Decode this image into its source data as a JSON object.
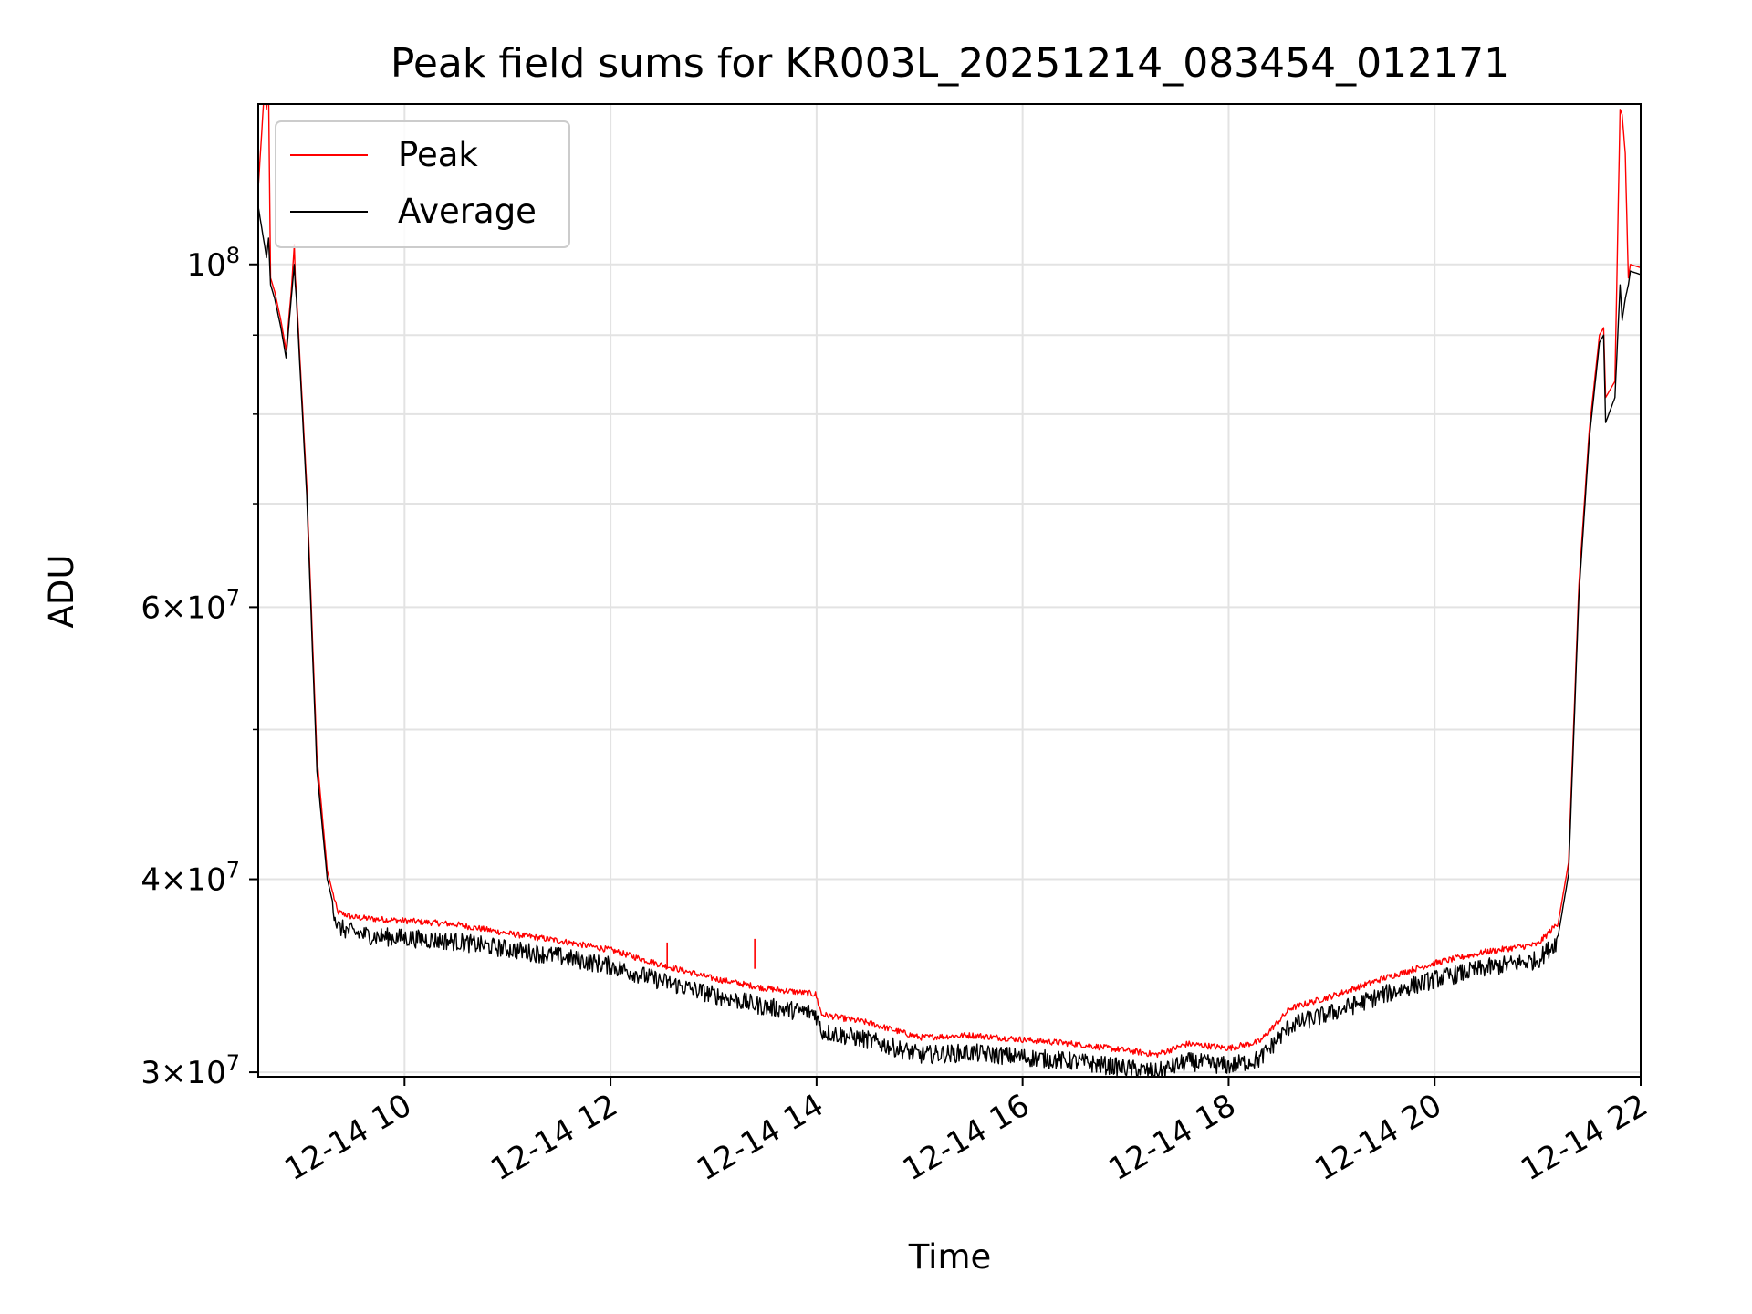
{
  "chart_data": {
    "type": "line",
    "title": "Peak field sums for KR003L_20251214_083454_012171",
    "xlabel": "Time",
    "ylabel": "ADU",
    "yscale": "log",
    "xlim": [
      8.58,
      22.0
    ],
    "ylim": [
      29800000,
      127000000
    ],
    "grid": true,
    "legend_position": "upper-left",
    "x_ticks": [
      {
        "value": 10,
        "label": "12-14 10"
      },
      {
        "value": 12,
        "label": "12-14 12"
      },
      {
        "value": 14,
        "label": "12-14 14"
      },
      {
        "value": 16,
        "label": "12-14 16"
      },
      {
        "value": 18,
        "label": "12-14 18"
      },
      {
        "value": 20,
        "label": "12-14 20"
      },
      {
        "value": 22,
        "label": "12-14 22"
      }
    ],
    "y_ticks": [
      {
        "value": 30000000,
        "mantissa": "3",
        "exponent": "7"
      },
      {
        "value": 40000000,
        "mantissa": "4",
        "exponent": "7"
      },
      {
        "value": 60000000,
        "mantissa": "6",
        "exponent": "7"
      },
      {
        "value": 100000000,
        "mantissa": "",
        "exponent": "8"
      }
    ],
    "y_minor_ticks": [
      50000000,
      70000000,
      80000000,
      90000000
    ],
    "series": [
      {
        "name": "Peak",
        "color": "#ff0000",
        "x": [
          8.58,
          8.64,
          8.66,
          8.68,
          8.7,
          8.72,
          8.74,
          8.8,
          8.85,
          8.9,
          8.93,
          8.94,
          8.95,
          9.05,
          9.15,
          9.25,
          9.35,
          9.5,
          9.7,
          10.0,
          10.5,
          11.0,
          11.5,
          12.0,
          12.5,
          13.0,
          13.5,
          13.99,
          14.05,
          14.5,
          15.0,
          15.5,
          16.0,
          16.5,
          17.0,
          17.3,
          17.6,
          18.0,
          18.3,
          18.6,
          19.0,
          19.5,
          20.0,
          20.5,
          21.0,
          21.2,
          21.3,
          21.4,
          21.5,
          21.6,
          21.64,
          21.66,
          21.75,
          21.8,
          21.82,
          21.85,
          21.88,
          21.9,
          22.0
        ],
        "y": [
          112000000,
          130000000,
          126000000,
          130000000,
          98000000,
          97000000,
          96000000,
          92000000,
          88000000,
          96000000,
          103000000,
          98000000,
          96000000,
          72000000,
          48000000,
          40500000,
          38100000,
          37800000,
          37700000,
          37600000,
          37400000,
          36900000,
          36500000,
          36000000,
          35200000,
          34500000,
          34000000,
          33700000,
          32700000,
          32300000,
          31600000,
          31700000,
          31500000,
          31300000,
          31000000,
          30800000,
          31300000,
          31100000,
          31400000,
          33000000,
          33600000,
          34500000,
          35300000,
          35900000,
          36300000,
          37500000,
          41000000,
          62000000,
          78000000,
          90000000,
          91000000,
          82000000,
          84000000,
          126000000,
          125000000,
          118000000,
          98000000,
          100000000,
          99500000
        ]
      },
      {
        "name": "Average",
        "color": "#000000",
        "x": [
          8.58,
          8.64,
          8.66,
          8.68,
          8.7,
          8.72,
          8.74,
          8.8,
          8.85,
          8.9,
          8.93,
          8.94,
          8.95,
          9.05,
          9.15,
          9.25,
          9.35,
          9.5,
          9.7,
          10.0,
          10.5,
          11.0,
          11.5,
          12.0,
          12.5,
          13.0,
          13.5,
          13.99,
          14.05,
          14.5,
          15.0,
          15.5,
          16.0,
          16.5,
          17.0,
          17.3,
          17.6,
          18.0,
          18.3,
          18.6,
          19.0,
          19.5,
          20.0,
          20.5,
          21.0,
          21.2,
          21.3,
          21.4,
          21.5,
          21.6,
          21.64,
          21.66,
          21.75,
          21.8,
          21.82,
          21.85,
          21.88,
          21.9,
          22.0
        ],
        "y": [
          109000000,
          103000000,
          101000000,
          104000000,
          97000000,
          96000000,
          95000000,
          91000000,
          87000000,
          95000000,
          100000000,
          97000000,
          95000000,
          71000000,
          47000000,
          40000000,
          37500000,
          37200000,
          37000000,
          36900000,
          36700000,
          36300000,
          35900000,
          35400000,
          34600000,
          33900000,
          33300000,
          33000000,
          32100000,
          31700000,
          31000000,
          31100000,
          30900000,
          30700000,
          30400000,
          30200000,
          30700000,
          30500000,
          30800000,
          32400000,
          33000000,
          33900000,
          34700000,
          35300000,
          35700000,
          36800000,
          40300000,
          61000000,
          77000000,
          89000000,
          90000000,
          79000000,
          82000000,
          97000000,
          92000000,
          95000000,
          97000000,
          99000000,
          98500000
        ]
      }
    ]
  }
}
